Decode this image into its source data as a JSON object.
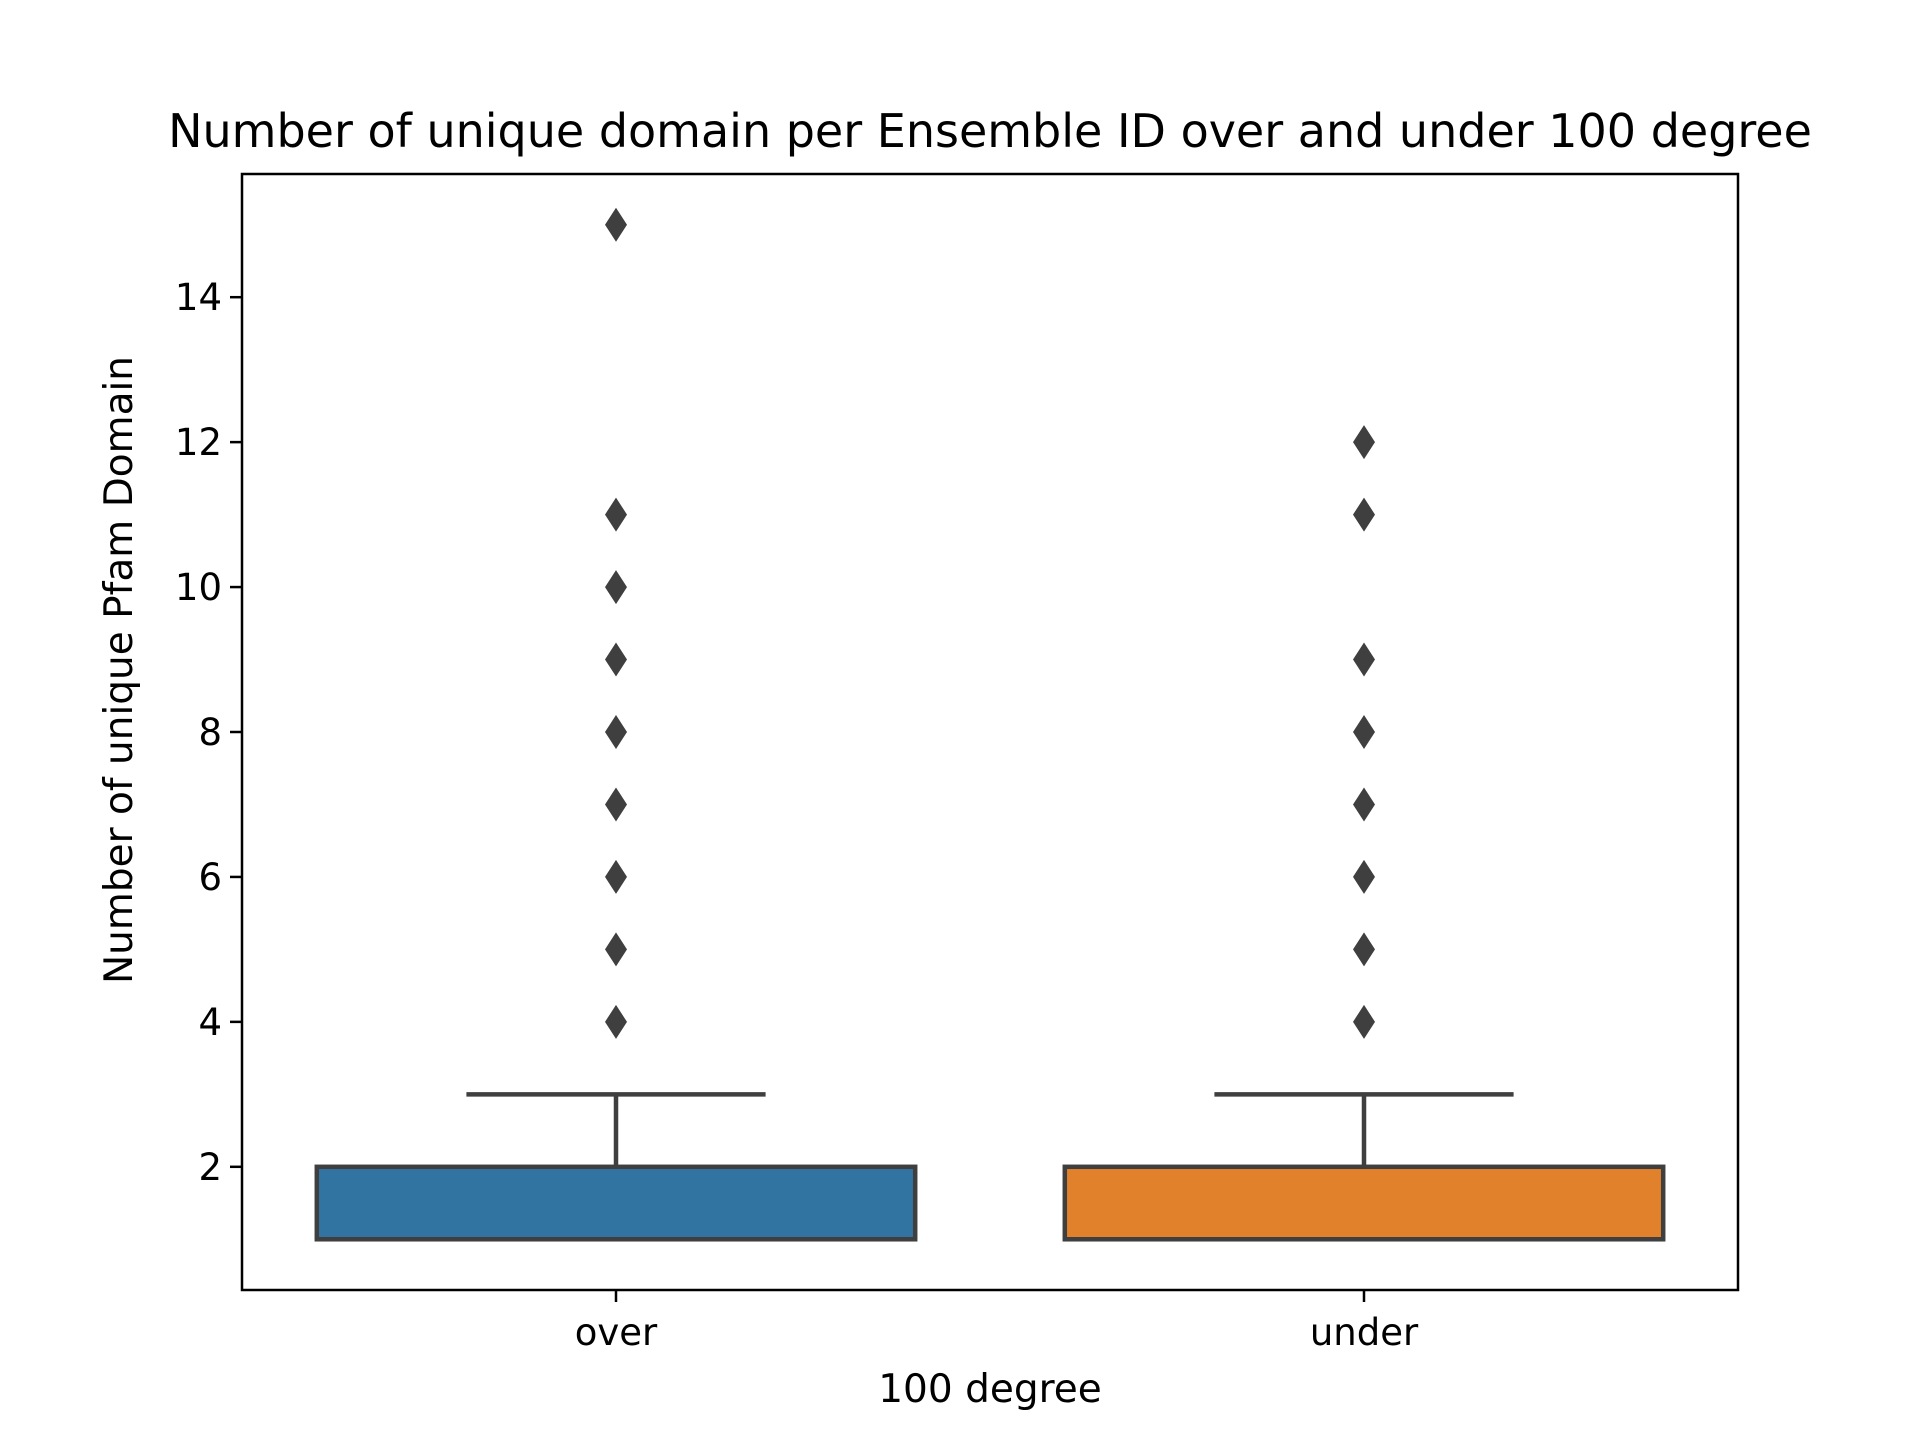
{
  "chart_data": {
    "type": "box",
    "title": "Number of unique domain per Ensemble ID over and under 100 degree",
    "xlabel": "100 degree",
    "ylabel": "Number of unique Pfam Domain",
    "categories": [
      "over",
      "under"
    ],
    "ylim": [
      0.3,
      15.7
    ],
    "yticks": [
      2,
      4,
      6,
      8,
      10,
      12,
      14
    ],
    "grid": false,
    "boxes": [
      {
        "category": "over",
        "color": "#3274a1",
        "whisker_low": 1,
        "q1": 1,
        "median": 1,
        "q3": 2,
        "whisker_high": 3,
        "outliers": [
          4,
          5,
          6,
          7,
          8,
          9,
          10,
          11,
          15
        ]
      },
      {
        "category": "under",
        "color": "#e1812c",
        "whisker_low": 1,
        "q1": 1,
        "median": 1,
        "q3": 2,
        "whisker_high": 3,
        "outliers": [
          4,
          5,
          6,
          7,
          8,
          9,
          11,
          12
        ]
      }
    ],
    "line_color": "#3f3f3f"
  }
}
